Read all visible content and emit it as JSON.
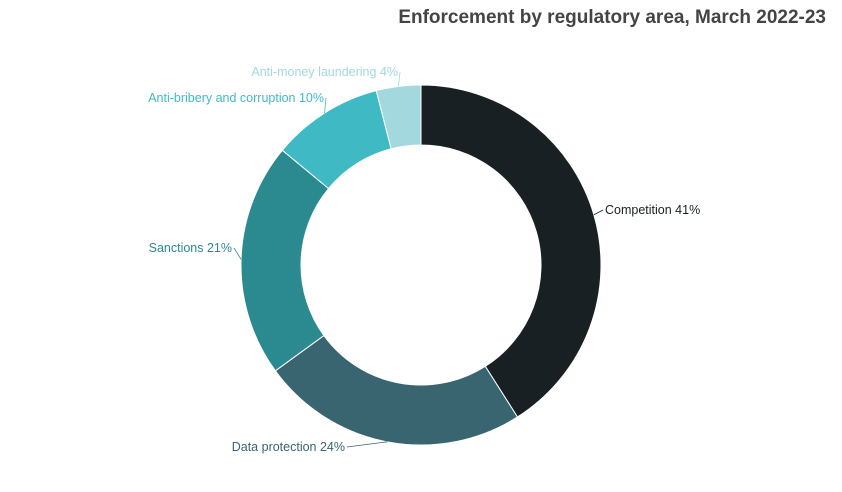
{
  "chart_data": {
    "type": "pie",
    "variant": "donut",
    "title": "Enforcement by regulatory area, March 2022-23",
    "slices": [
      {
        "label": "Competition",
        "value": 41,
        "display": "Competition 41%",
        "color": "#182023"
      },
      {
        "label": "Data protection",
        "value": 24,
        "display": "Data protection 24%",
        "color": "#386570"
      },
      {
        "label": "Sanctions",
        "value": 21,
        "display": "Sanctions 21%",
        "color": "#2b8a8f"
      },
      {
        "label": "Anti-bribery and corruption",
        "value": 10,
        "display": "Anti-bribery and corruption 10%",
        "color": "#3fbac4"
      },
      {
        "label": "Anti-money laundering",
        "value": 4,
        "display": "Anti-money laundering 4%",
        "color": "#a2d8de"
      }
    ],
    "legend": "none"
  }
}
